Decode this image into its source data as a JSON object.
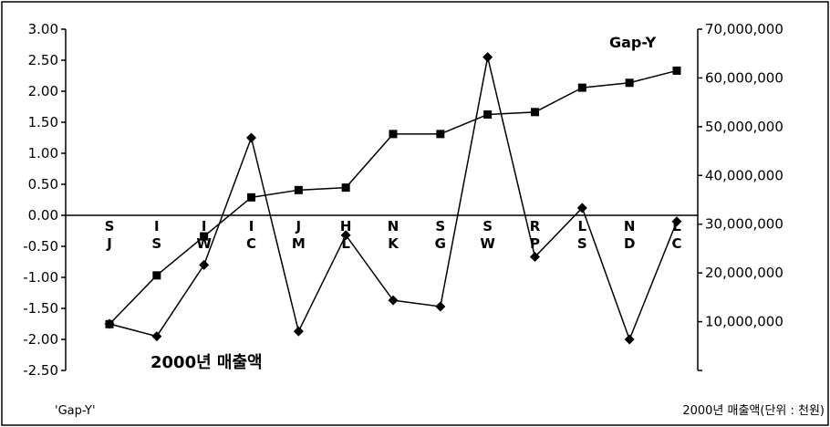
{
  "chart_data": {
    "type": "line",
    "grid": false,
    "categories": [
      "S\nJ",
      "I\nS",
      "I\nW",
      "I\nC",
      "J\nM",
      "H\nL",
      "N\nK",
      "S\nG",
      "S\nW",
      "R\nP",
      "L\nS",
      "N\nD",
      "L\nC"
    ],
    "y_left": {
      "ylim": [
        -2.5,
        3.0
      ],
      "ticks": [
        "3.00",
        "2.50",
        "2.00",
        "1.50",
        "1.00",
        "0.50",
        "0.00",
        "-0.50",
        "-1.00",
        "-1.50",
        "-2.00",
        "-2.50"
      ],
      "label": "'Gap-Y'"
    },
    "y_right": {
      "ylim": [
        0,
        70000000
      ],
      "ticks": [
        "70,000,000",
        "60,000,000",
        "50,000,000",
        "40,000,000",
        "30,000,000",
        "20,000,000",
        "10,000,000"
      ],
      "label": "2000년 매출액(단위 : 천원)"
    },
    "series": [
      {
        "name": "Gap-Y",
        "axis": "left",
        "marker": "diamond",
        "values": [
          -1.75,
          -1.95,
          -0.8,
          1.25,
          -1.87,
          -0.32,
          -1.37,
          -1.47,
          2.55,
          -0.67,
          0.12,
          -2.0,
          -0.1
        ]
      },
      {
        "name": "2000년 매출액",
        "axis": "right",
        "marker": "square",
        "values": [
          9500000,
          19500000,
          27500000,
          35500000,
          37000000,
          37500000,
          48500000,
          48500000,
          52500000,
          53000000,
          58000000,
          59000000,
          61500000
        ]
      }
    ]
  }
}
